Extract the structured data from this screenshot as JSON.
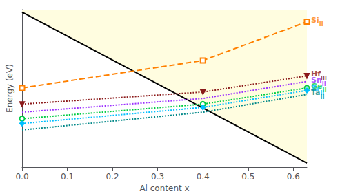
{
  "chart_data": {
    "type": "line",
    "xlabel": "Al content x",
    "ylabel": "Energy (eV)",
    "xlim": [
      0.0,
      0.63
    ],
    "ylim": [
      -1.5,
      0.45
    ],
    "xticks": [
      {
        "value": 0.0,
        "label": "0.0"
      },
      0.1,
      0.2,
      0.3,
      0.4,
      0.5,
      0.6
    ],
    "grid": false,
    "tick_labels": "x",
    "x": [
      0.0,
      0.4,
      0.63
    ],
    "series": [
      {
        "type": "area",
        "color": "#FFFDE0",
        "x": [
          0.0,
          0.63
        ],
        "values": [
          0.42,
          -1.45
        ]
      },
      {
        "name": "Si",
        "color": "#FF8000",
        "marker": "square_open",
        "line_style": "dashed",
        "values": [
          -0.52,
          -0.18,
          0.3
        ]
      },
      {
        "name": "Hf",
        "color": "#8B1A1A",
        "marker": "triangle_down",
        "line_style": "dotted",
        "values": [
          -0.72,
          -0.57,
          -0.37
        ]
      },
      {
        "name": "Sn",
        "color": "#9B30FF",
        "marker": "none",
        "line_style": "dotted",
        "values": [
          -0.82,
          -0.65,
          -0.44
        ]
      },
      {
        "name": "Ge",
        "color": "#00CC44",
        "marker": "circle_open",
        "line_style": "dotted",
        "values": [
          -0.9,
          -0.72,
          -0.52
        ]
      },
      {
        "name": "Zr",
        "color": "#00BFFF",
        "marker": "diamond",
        "line_style": "dotted",
        "values": [
          -0.96,
          -0.76,
          -0.55
        ]
      },
      {
        "name": "Ta",
        "color": "#008888",
        "marker": "none",
        "line_style": "dotted",
        "values": [
          -1.04,
          -0.82,
          -0.6
        ]
      }
    ],
    "annotations": [
      {
        "text": "Si",
        "subscript": "II",
        "x": 0.63,
        "y": 0.3,
        "color": "#FF8000"
      },
      {
        "text": "Hf",
        "subscript": "III",
        "x": 0.63,
        "y": -0.37,
        "color": "#8B1A1A"
      },
      {
        "text": "Sn",
        "subscript": "II",
        "x": 0.63,
        "y": -0.44,
        "color": "#9B30FF"
      },
      {
        "text": "Ge",
        "subscript": "II",
        "x": 0.63,
        "y": -0.52,
        "color": "#00CC44"
      },
      {
        "text": "Zr",
        "subscript": "II",
        "x": 0.63,
        "y": -0.55,
        "color": "#00BFFF"
      },
      {
        "text": "Ta",
        "subscript": "II",
        "x": 0.63,
        "y": -0.6,
        "color": "#008888"
      }
    ]
  }
}
